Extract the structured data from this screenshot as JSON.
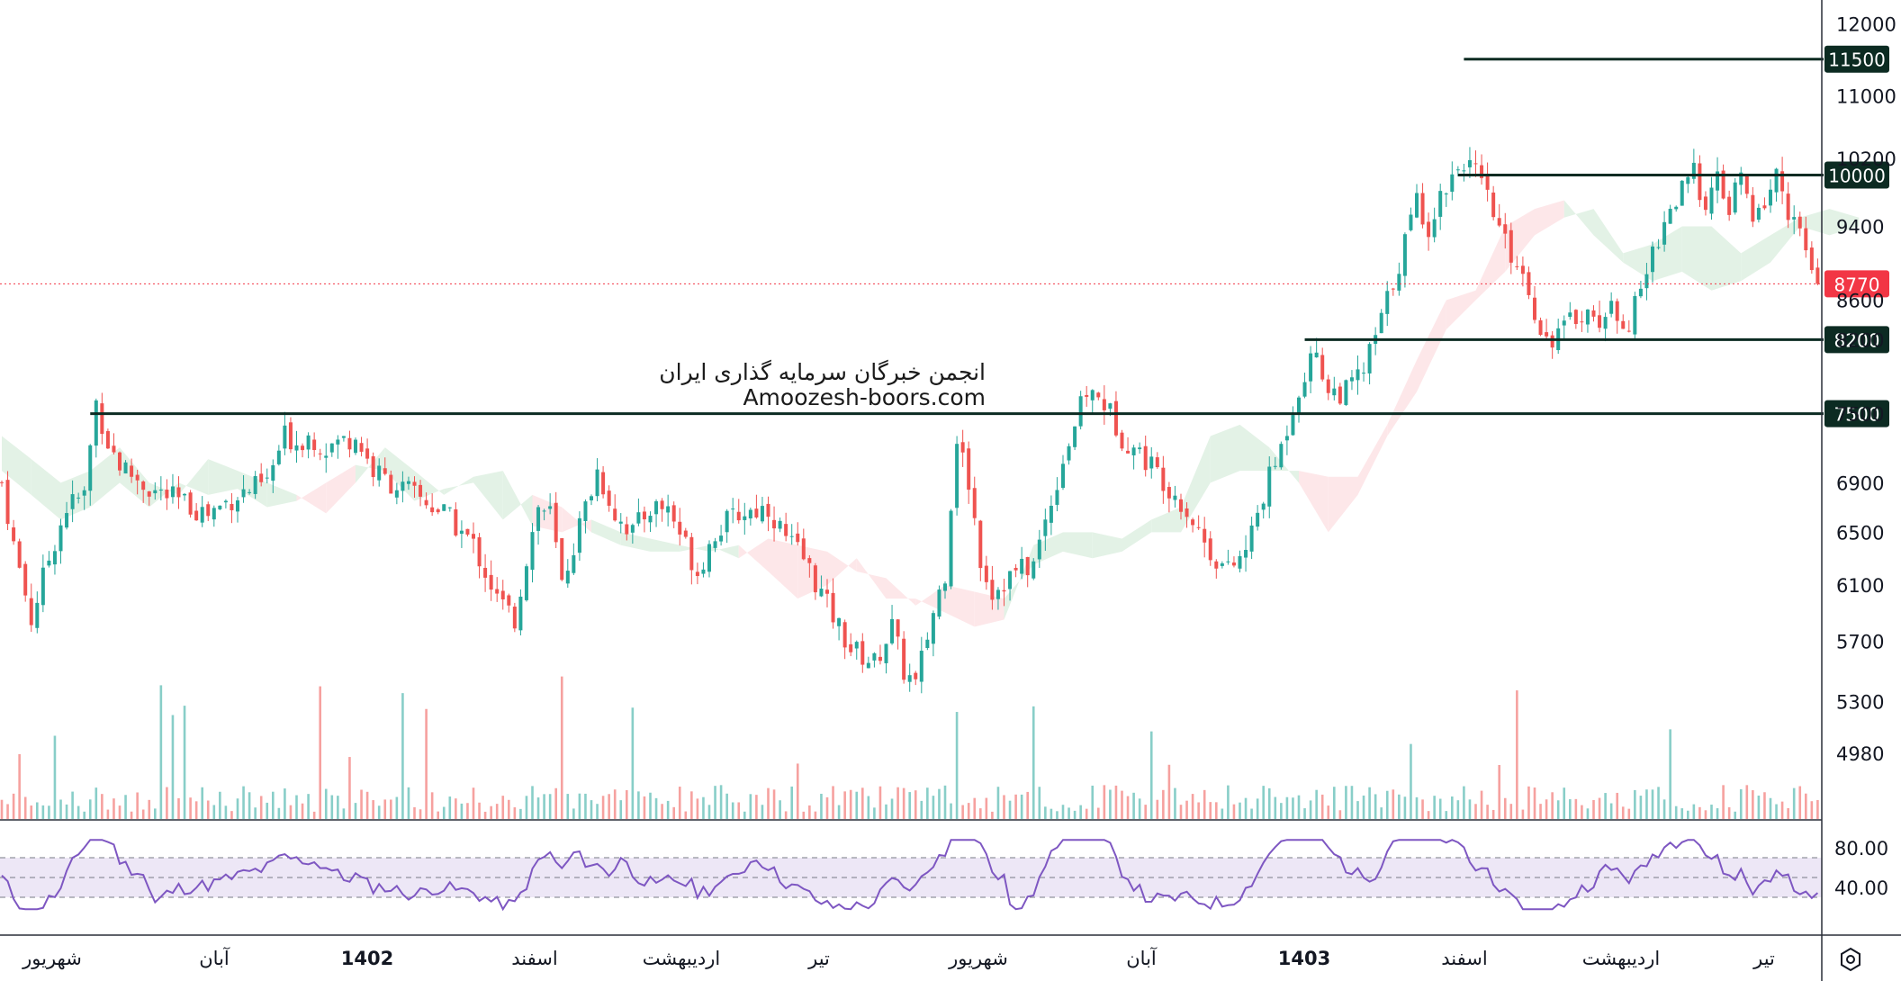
{
  "chart_data": {
    "type": "candlestick",
    "title": "",
    "price_axis": {
      "ticks": [
        "12000",
        "11000",
        "10200",
        "9400",
        "8600",
        "8200",
        "7500",
        "6900",
        "6500",
        "6100",
        "5700",
        "5300",
        "4980"
      ],
      "min": 4600,
      "max": 12350,
      "scale": "log"
    },
    "last_price": {
      "value": 8770,
      "label": "8770",
      "color": "#f23645"
    },
    "levels": [
      {
        "value": 11500,
        "label": "11500",
        "from_index": 248
      },
      {
        "value": 10000,
        "label": "10000",
        "from_index": 247
      },
      {
        "value": 8200,
        "label": "8200",
        "from_index": 221
      },
      {
        "value": 7500,
        "label": "7500",
        "from_index": 15
      }
    ],
    "time_axis": [
      "شهریور",
      "آبان",
      "1402",
      "اسفند",
      "اردیبهشت",
      "تیر",
      "شهریور",
      "آبان",
      "1403",
      "اسفند",
      "اردیبهشت",
      "تیر"
    ],
    "time_axis_bold": [
      "1402",
      "1403"
    ],
    "segments": [
      [
        0,
        6900
      ],
      [
        2,
        6400
      ],
      [
        5,
        5850
      ],
      [
        8,
        6300
      ],
      [
        11,
        6700
      ],
      [
        14,
        6800
      ],
      [
        16,
        7600
      ],
      [
        18,
        7250
      ],
      [
        20,
        7050
      ],
      [
        25,
        6850
      ],
      [
        30,
        6750
      ],
      [
        35,
        6650
      ],
      [
        40,
        6800
      ],
      [
        45,
        6900
      ],
      [
        48,
        7300
      ],
      [
        50,
        7250
      ],
      [
        52,
        7300
      ],
      [
        55,
        7200
      ],
      [
        60,
        7300
      ],
      [
        63,
        7000
      ],
      [
        66,
        6900
      ],
      [
        70,
        6800
      ],
      [
        75,
        6650
      ],
      [
        80,
        6400
      ],
      [
        84,
        6000
      ],
      [
        87,
        5850
      ],
      [
        89,
        6300
      ],
      [
        91,
        6700
      ],
      [
        93,
        6650
      ],
      [
        95,
        6100
      ],
      [
        97,
        6400
      ],
      [
        101,
        7000
      ],
      [
        104,
        6650
      ],
      [
        107,
        6500
      ],
      [
        110,
        6700
      ],
      [
        113,
        6700
      ],
      [
        116,
        6400
      ],
      [
        118,
        6200
      ],
      [
        121,
        6500
      ],
      [
        125,
        6650
      ],
      [
        130,
        6700
      ],
      [
        133,
        6450
      ],
      [
        136,
        6300
      ],
      [
        140,
        5950
      ],
      [
        144,
        5650
      ],
      [
        148,
        5550
      ],
      [
        151,
        5800
      ],
      [
        153,
        5500
      ],
      [
        155,
        5400
      ],
      [
        158,
        5900
      ],
      [
        160,
        6200
      ],
      [
        162,
        7300
      ],
      [
        164,
        6900
      ],
      [
        166,
        6300
      ],
      [
        168,
        6050
      ],
      [
        172,
        6200
      ],
      [
        175,
        6250
      ],
      [
        180,
        7100
      ],
      [
        184,
        7700
      ],
      [
        187,
        7600
      ],
      [
        190,
        7300
      ],
      [
        195,
        7050
      ],
      [
        200,
        6750
      ],
      [
        205,
        6350
      ],
      [
        208,
        6200
      ],
      [
        211,
        6350
      ],
      [
        214,
        6800
      ],
      [
        217,
        7200
      ],
      [
        220,
        7750
      ],
      [
        223,
        8100
      ],
      [
        225,
        7700
      ],
      [
        228,
        7700
      ],
      [
        231,
        7900
      ],
      [
        234,
        8400
      ],
      [
        237,
        9000
      ],
      [
        240,
        9700
      ],
      [
        242,
        9400
      ],
      [
        245,
        9900
      ],
      [
        248,
        10200
      ],
      [
        250,
        10000
      ],
      [
        252,
        9700
      ],
      [
        255,
        9200
      ],
      [
        258,
        8900
      ],
      [
        260,
        8500
      ],
      [
        262,
        8200
      ],
      [
        265,
        8300
      ],
      [
        268,
        8500
      ],
      [
        270,
        8400
      ],
      [
        274,
        8500
      ],
      [
        276,
        8350
      ],
      [
        278,
        8700
      ],
      [
        281,
        9300
      ],
      [
        283,
        9600
      ],
      [
        285,
        9800
      ],
      [
        287,
        10000
      ],
      [
        289,
        9700
      ],
      [
        291,
        9900
      ],
      [
        293,
        9600
      ],
      [
        295,
        10000
      ],
      [
        297,
        9400
      ],
      [
        299,
        9700
      ],
      [
        301,
        10000
      ],
      [
        303,
        9600
      ],
      [
        305,
        9300
      ],
      [
        307,
        8900
      ],
      [
        308,
        8770
      ]
    ],
    "cloud": [
      [
        0,
        7300,
        7000
      ],
      [
        5,
        7100,
        6800
      ],
      [
        10,
        6900,
        6600
      ],
      [
        15,
        7000,
        6700
      ],
      [
        20,
        7200,
        6900
      ],
      [
        25,
        6900,
        6700
      ],
      [
        30,
        6800,
        6900
      ],
      [
        35,
        7100,
        6800
      ],
      [
        40,
        7000,
        6850
      ],
      [
        45,
        6900,
        6700
      ],
      [
        50,
        6800,
        6750
      ],
      [
        55,
        6650,
        6900
      ],
      [
        60,
        6900,
        7050
      ],
      [
        65,
        7200,
        7000
      ],
      [
        70,
        7000,
        6750
      ],
      [
        75,
        6800,
        6850
      ],
      [
        80,
        6950,
        6900
      ],
      [
        85,
        7000,
        6600
      ],
      [
        90,
        6550,
        6800
      ],
      [
        95,
        6500,
        6700
      ],
      [
        100,
        6600,
        6500
      ],
      [
        105,
        6500,
        6400
      ],
      [
        110,
        6450,
        6350
      ],
      [
        115,
        6400,
        6350
      ],
      [
        120,
        6350,
        6400
      ],
      [
        125,
        6400,
        6300
      ],
      [
        130,
        6200,
        6450
      ],
      [
        135,
        6000,
        6400
      ],
      [
        140,
        6100,
        6350
      ],
      [
        145,
        6300,
        6200
      ],
      [
        150,
        6000,
        6150
      ],
      [
        155,
        6000,
        5950
      ],
      [
        160,
        5900,
        6100
      ],
      [
        165,
        5800,
        6050
      ],
      [
        170,
        5850,
        6000
      ],
      [
        175,
        6400,
        6250
      ],
      [
        180,
        6500,
        6350
      ],
      [
        185,
        6500,
        6300
      ],
      [
        190,
        6450,
        6350
      ],
      [
        195,
        6600,
        6500
      ],
      [
        200,
        6700,
        6500
      ],
      [
        205,
        7300,
        6900
      ],
      [
        210,
        7400,
        7000
      ],
      [
        215,
        7200,
        7000
      ],
      [
        220,
        6900,
        7000
      ],
      [
        225,
        6500,
        6950
      ],
      [
        230,
        6800,
        6950
      ],
      [
        235,
        7300,
        7400
      ],
      [
        240,
        7700,
        8000
      ],
      [
        245,
        8300,
        8600
      ],
      [
        250,
        8600,
        8700
      ],
      [
        255,
        8900,
        9400
      ],
      [
        260,
        9300,
        9600
      ],
      [
        265,
        9500,
        9700
      ],
      [
        270,
        9600,
        9300
      ],
      [
        275,
        9100,
        9000
      ],
      [
        280,
        9200,
        8800
      ],
      [
        285,
        9400,
        8900
      ],
      [
        290,
        9400,
        8700
      ],
      [
        295,
        9100,
        8800
      ],
      [
        300,
        9300,
        9000
      ],
      [
        305,
        9500,
        9400
      ],
      [
        310,
        9600,
        9300
      ],
      [
        315,
        9500,
        9400
      ]
    ],
    "rsi": {
      "ticks": [
        "80.00",
        "40.00"
      ],
      "upper": 70,
      "middle": 50,
      "lower": 30,
      "min": 0,
      "max": 100
    },
    "grid": false
  },
  "watermark": {
    "line1": "انجمن خبرگان سرمایه گذاری ایران",
    "line2": "Amoozesh-boors.com"
  },
  "colors": {
    "up": "#26a69a",
    "down": "#ef5350",
    "level_line": "#0c2b22",
    "level_badge": "#0c2b22",
    "rsi_line": "#7e57c2",
    "rsi_band": "#ede7f6",
    "cloud_bull": "#e3f2e6",
    "cloud_bear": "#fde7e9",
    "axis_text": "#131722"
  },
  "icons": {
    "settings": "settings-hex-icon"
  }
}
